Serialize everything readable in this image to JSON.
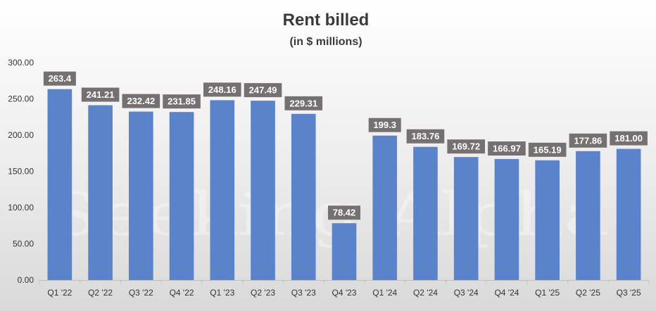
{
  "chart_data": {
    "type": "bar",
    "title": "Rent billed",
    "subtitle": "(in $ millions)",
    "categories": [
      "Q1 '22",
      "Q2 '22",
      "Q3 '22",
      "Q4 '22",
      "Q1 '23",
      "Q2 '23",
      "Q3 '23",
      "Q4 '23",
      "Q1 '24",
      "Q2 '24",
      "Q3 '24",
      "Q4 '24",
      "Q1 '25",
      "Q2 '25",
      "Q3 '25"
    ],
    "values": [
      263.4,
      241.21,
      232.42,
      231.85,
      248.16,
      247.49,
      229.31,
      78.42,
      199.3,
      183.76,
      169.72,
      166.97,
      165.19,
      177.86,
      181.0
    ],
    "data_labels": [
      "263.4",
      "241.21",
      "232.42",
      "231.85",
      "248.16",
      "247.49",
      "229.31",
      "78.42",
      "199.3",
      "183.76",
      "169.72",
      "166.97",
      "165.19",
      "177.86",
      "181.00"
    ],
    "yticks": [
      "0.00",
      "50.00",
      "100.00",
      "150.00",
      "200.00",
      "250.00",
      "300.00"
    ],
    "ylim": [
      0,
      300
    ],
    "grid": false,
    "bar_color": "#5b83cc",
    "label_bg_color": "#767171",
    "watermark": "Seeking Alpha"
  }
}
